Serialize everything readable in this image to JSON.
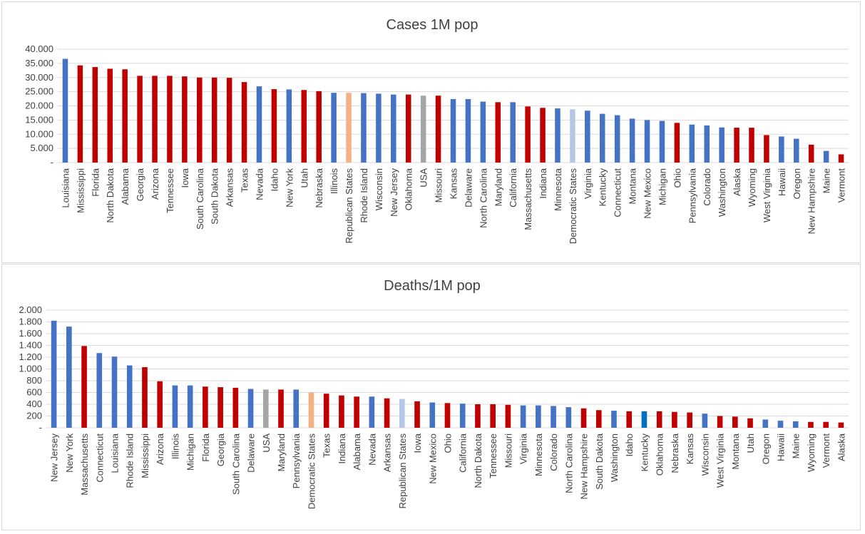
{
  "colors": {
    "democrat": "#4472C4",
    "republican": "#C00000",
    "usa": "#A5A5A5",
    "democratic_states": "#B4C7E7",
    "republican_states": "#F4B183",
    "kentucky_highlight": "#0070C0",
    "grid": "#d9d9d9",
    "text": "#404040"
  },
  "chart_data": [
    {
      "type": "bar",
      "title": "Cases 1M pop",
      "ylim": [
        0,
        40000
      ],
      "yticks": [
        "-",
        "5.000",
        "10.000",
        "15.000",
        "20.000",
        "25.000",
        "30.000",
        "35.000",
        "40.000"
      ],
      "grid": true,
      "legend": "none",
      "categories": [
        "Louisiana",
        "Mississippi",
        "Florida",
        "North Dakota",
        "Alabama",
        "Georgia",
        "Arizona",
        "Tennessee",
        "Iowa",
        "South Carolina",
        "South Dakota",
        "Arkansas",
        "Texas",
        "Nevada",
        "Idaho",
        "New York",
        "Utah",
        "Nebraska",
        "Illinois",
        "Republican States",
        "Rhode Island",
        "Wisconsin",
        "New Jersey",
        "Oklahoma",
        "USA",
        "Missouri",
        "Kansas",
        "Delaware",
        "North Carolina",
        "Maryland",
        "California",
        "Massachusetts",
        "Indiana",
        "Minnesota",
        "Democratic States",
        "Virginia",
        "Kentucky",
        "Connecticut",
        "Montana",
        "New Mexico",
        "Michigan",
        "Ohio",
        "Pennsylvania",
        "Colorado",
        "Washington",
        "Alaska",
        "Wyoming",
        "West Virginia",
        "Hawaii",
        "Oregon",
        "New Hampshire",
        "Maine",
        "Vermont"
      ],
      "values": [
        36600,
        34300,
        33700,
        33100,
        32900,
        30600,
        30600,
        30600,
        30400,
        30000,
        30000,
        29900,
        28400,
        26900,
        25900,
        25800,
        25600,
        25200,
        24600,
        24600,
        24500,
        24300,
        24000,
        24000,
        23600,
        23600,
        22400,
        22400,
        21500,
        21300,
        21300,
        19800,
        19300,
        19100,
        18800,
        18300,
        17200,
        16700,
        15500,
        15000,
        14700,
        14000,
        13400,
        13100,
        12400,
        12300,
        12300,
        9700,
        9200,
        8400,
        6300,
        4100,
        2900
      ],
      "bar_colors": [
        "democrat",
        "republican",
        "republican",
        "republican",
        "republican",
        "republican",
        "republican",
        "republican",
        "republican",
        "republican",
        "republican",
        "republican",
        "republican",
        "democrat",
        "republican",
        "democrat",
        "republican",
        "republican",
        "democrat",
        "republican_states",
        "democrat",
        "democrat",
        "democrat",
        "republican",
        "usa",
        "republican",
        "democrat",
        "democrat",
        "democrat",
        "republican",
        "democrat",
        "republican",
        "republican",
        "democrat",
        "democratic_states",
        "democrat",
        "democrat",
        "democrat",
        "democrat",
        "democrat",
        "democrat",
        "republican",
        "democrat",
        "democrat",
        "democrat",
        "republican",
        "republican",
        "republican",
        "democrat",
        "democrat",
        "republican",
        "democrat",
        "republican"
      ]
    },
    {
      "type": "bar",
      "title": "Deaths/1M pop",
      "ylim": [
        0,
        2000
      ],
      "yticks": [
        "-",
        "200",
        "400",
        "600",
        "800",
        "1.000",
        "1.200",
        "1.400",
        "1.600",
        "1.800",
        "2.000"
      ],
      "grid": true,
      "legend": "none",
      "categories": [
        "New Jersey",
        "New York",
        "Massachusetts",
        "Connecticut",
        "Louisiana",
        "Rhode Island",
        "Mississippi",
        "Arizona",
        "Illinois",
        "Michigan",
        "Florida",
        "Georgia",
        "South Carolina",
        "Delaware",
        "USA",
        "Maryland",
        "Pennsylvania",
        "Democratic States",
        "Texas",
        "Indiana",
        "Alabama",
        "Nevada",
        "Arkansas",
        "Republican States",
        "Iowa",
        "New Mexico",
        "Ohio",
        "California",
        "North Dakota",
        "Tennessee",
        "Missouri",
        "Virginia",
        "Minnesota",
        "Colorado",
        "North Carolina",
        "New Hampshire",
        "South Dakota",
        "Washington",
        "Idaho",
        "Kentucky",
        "Oklahoma",
        "Nebraska",
        "Kansas",
        "Wisconsin",
        "West Virginia",
        "Montana",
        "Utah",
        "Oregon",
        "Hawaii",
        "Maine",
        "Wyoming",
        "Vermont",
        "Alaska"
      ],
      "values": [
        1820,
        1720,
        1390,
        1270,
        1210,
        1060,
        1030,
        790,
        720,
        720,
        700,
        690,
        680,
        660,
        650,
        650,
        650,
        600,
        580,
        550,
        530,
        530,
        500,
        490,
        450,
        430,
        420,
        410,
        400,
        400,
        390,
        380,
        380,
        370,
        350,
        330,
        300,
        290,
        280,
        280,
        280,
        270,
        260,
        240,
        200,
        190,
        160,
        140,
        120,
        110,
        100,
        100,
        90
      ],
      "bar_colors": [
        "democrat",
        "democrat",
        "republican",
        "democrat",
        "democrat",
        "democrat",
        "republican",
        "republican",
        "democrat",
        "democrat",
        "republican",
        "republican",
        "republican",
        "democrat",
        "usa",
        "republican",
        "democrat",
        "republican_states",
        "republican",
        "republican",
        "republican",
        "democrat",
        "republican",
        "democratic_states",
        "republican",
        "democrat",
        "republican",
        "democrat",
        "republican",
        "republican",
        "republican",
        "democrat",
        "democrat",
        "democrat",
        "democrat",
        "republican",
        "republican",
        "democrat",
        "republican",
        "kentucky_highlight",
        "republican",
        "republican",
        "republican",
        "democrat",
        "republican",
        "republican",
        "republican",
        "democrat",
        "democrat",
        "democrat",
        "republican",
        "republican",
        "republican"
      ]
    }
  ]
}
